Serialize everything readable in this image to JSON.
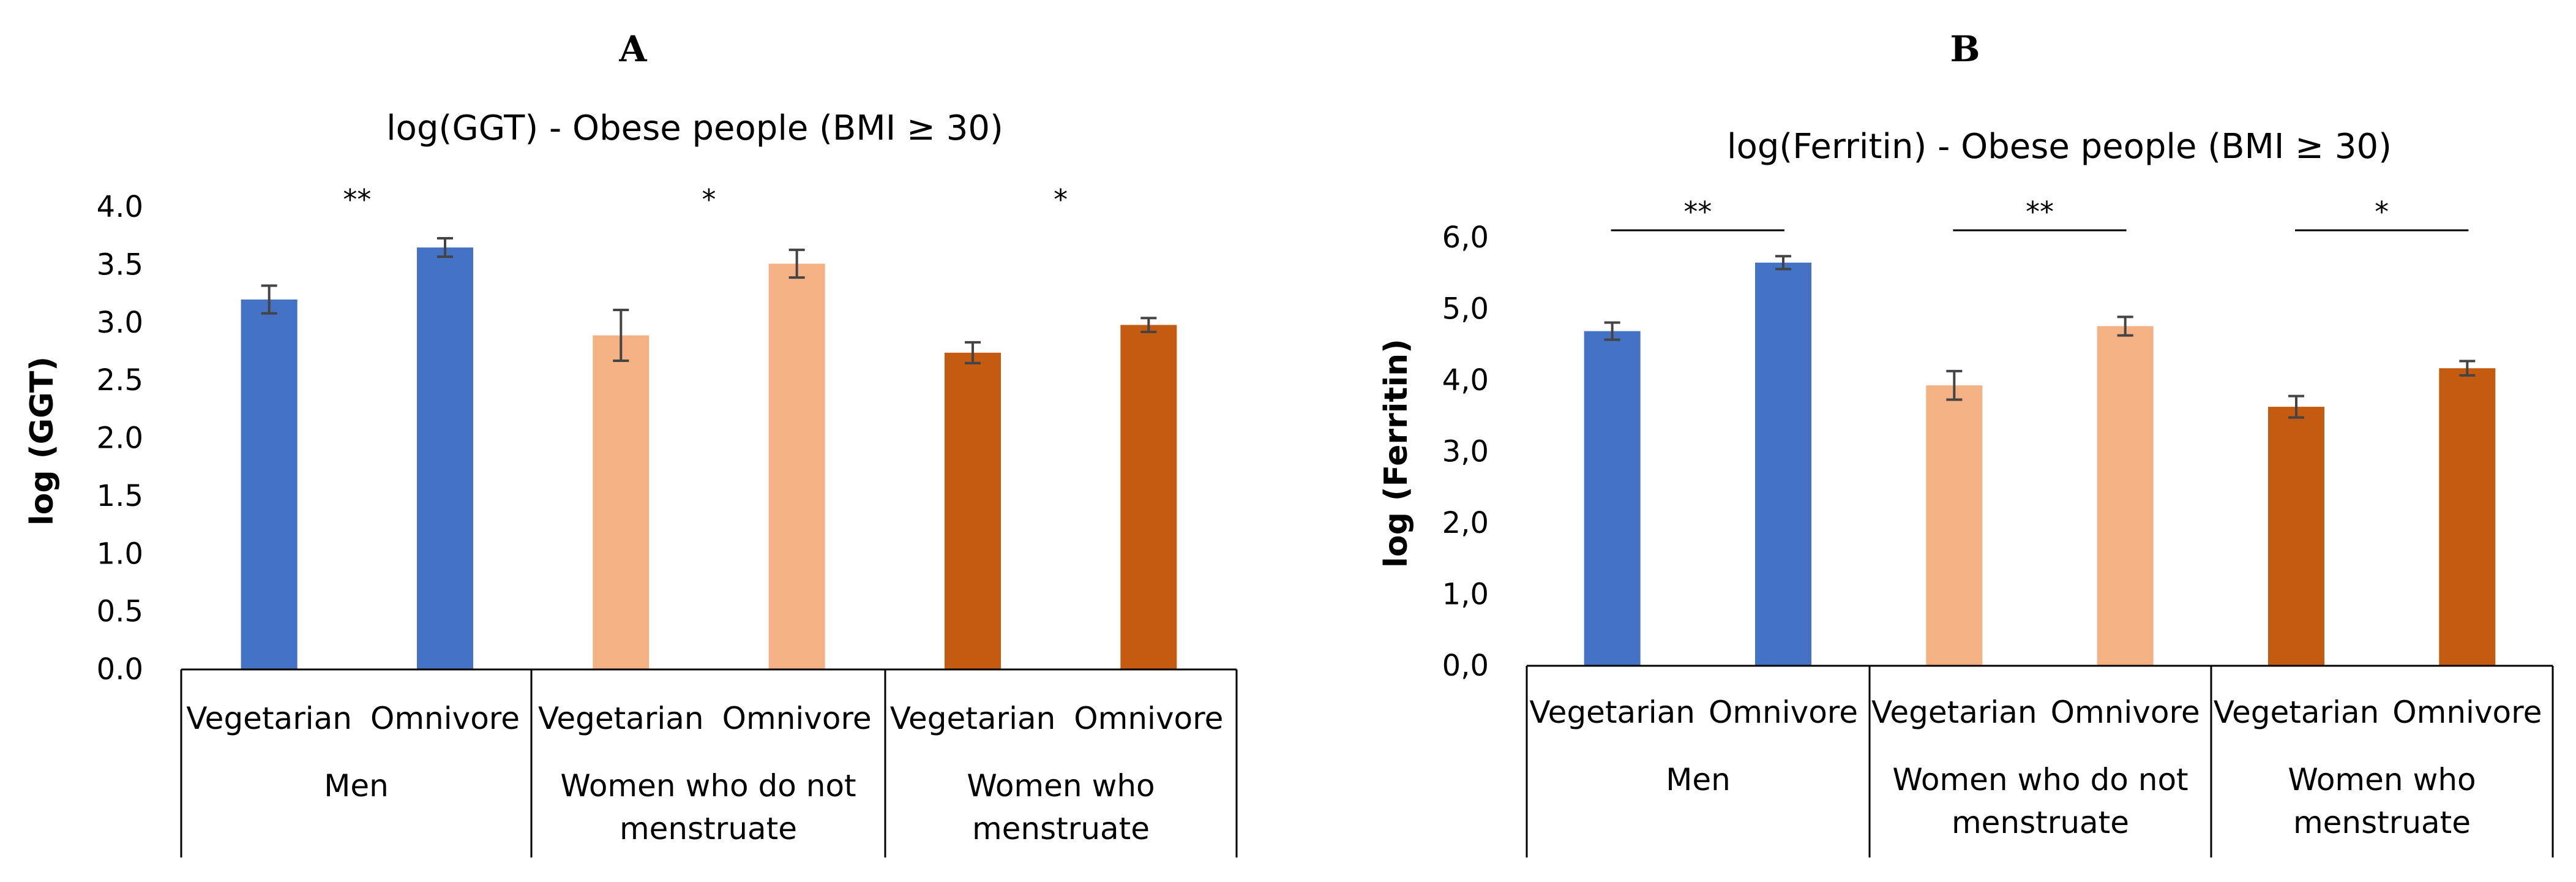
{
  "chart_data": [
    {
      "panel": "A",
      "type": "bar",
      "title": "log(GGT) - Obese people (BMI ≥ 30)",
      "ylabel": "log (GGT)",
      "xlabel": "",
      "ylim": [
        0,
        4
      ],
      "yticks": [
        "0.0",
        "0.5",
        "1.0",
        "1.5",
        "2.0",
        "2.5",
        "3.0",
        "3.5",
        "4.0"
      ],
      "groups": [
        {
          "label_lines": [
            "Men"
          ],
          "significance": "**",
          "sig_line": false
        },
        {
          "label_lines": [
            "Women who do not",
            "menstruate"
          ],
          "significance": "*",
          "sig_line": false
        },
        {
          "label_lines": [
            "Women who",
            "menstruate"
          ],
          "significance": "*",
          "sig_line": false
        }
      ],
      "categories": [
        "Vegetarian",
        "Omnivore",
        "Vegetarian",
        "Omnivore",
        "Vegetarian",
        "Omnivore"
      ],
      "values": [
        3.2,
        3.65,
        2.89,
        3.51,
        2.74,
        2.98
      ],
      "errors": [
        0.12,
        0.08,
        0.22,
        0.12,
        0.09,
        0.06
      ],
      "colors": [
        "#4472C4",
        "#4472C4",
        "#F4B183",
        "#F4B183",
        "#C55A11",
        "#C55A11"
      ]
    },
    {
      "panel": "B",
      "type": "bar",
      "title": "log(Ferritin) - Obese people (BMI ≥ 30)",
      "ylabel": "log (Ferritin)",
      "xlabel": "",
      "ylim": [
        0,
        6
      ],
      "yticks": [
        "0,0",
        "1,0",
        "2,0",
        "3,0",
        "4,0",
        "5,0",
        "6,0"
      ],
      "groups": [
        {
          "label_lines": [
            "Men"
          ],
          "significance": "**",
          "sig_line": true
        },
        {
          "label_lines": [
            "Women who do not",
            "menstruate"
          ],
          "significance": "**",
          "sig_line": true
        },
        {
          "label_lines": [
            "Women who",
            "menstruate"
          ],
          "significance": "*",
          "sig_line": true
        }
      ],
      "categories": [
        "Vegetarian",
        "Omnivore",
        "Vegetarian",
        "Omnivore",
        "Vegetarian",
        "Omnivore"
      ],
      "values": [
        4.69,
        5.65,
        3.93,
        4.76,
        3.63,
        4.17
      ],
      "errors": [
        0.12,
        0.09,
        0.2,
        0.13,
        0.15,
        0.1
      ],
      "colors": [
        "#4472C4",
        "#4472C4",
        "#F4B183",
        "#F4B183",
        "#C55A11",
        "#C55A11"
      ]
    }
  ]
}
